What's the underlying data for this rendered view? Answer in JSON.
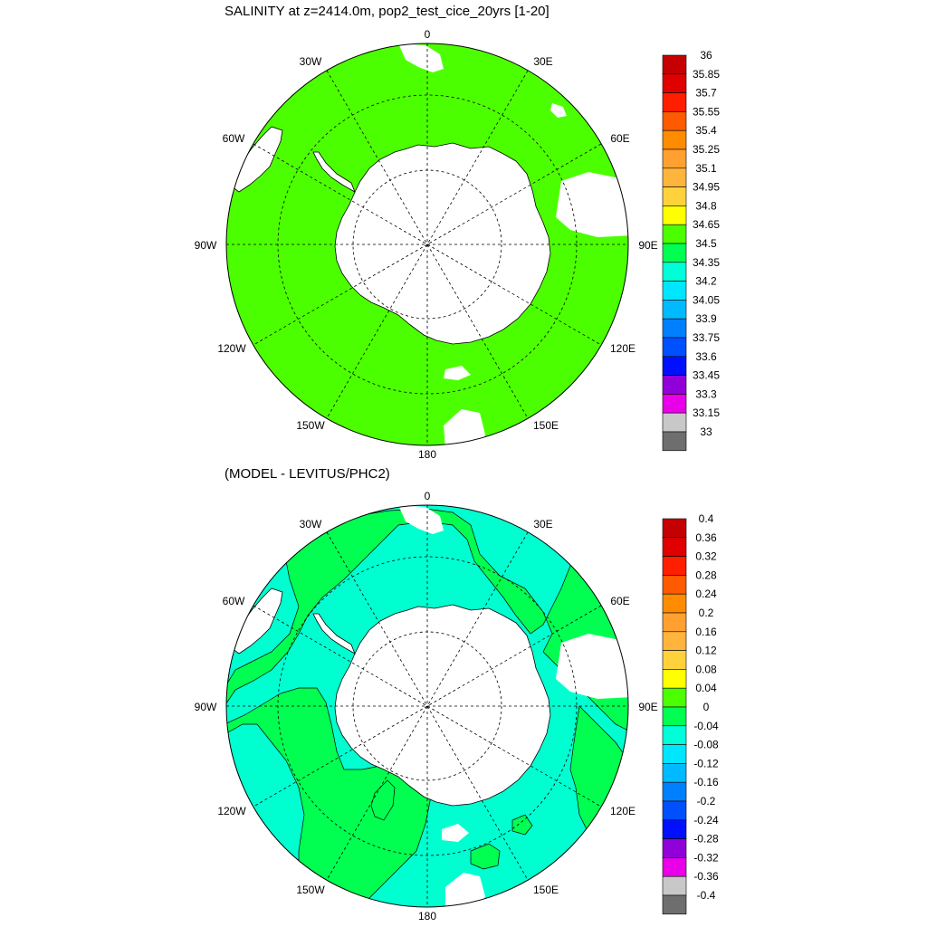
{
  "panels": [
    {
      "title": "SALINITY at z=2414.0m, pop2_test_cice_20yrs [1-20]",
      "fill_color": "#4cff00",
      "colorbar": {
        "labels": [
          "36",
          "35.85",
          "35.7",
          "35.55",
          "35.4",
          "35.25",
          "35.1",
          "34.95",
          "34.8",
          "34.65",
          "34.5",
          "34.35",
          "34.2",
          "34.05",
          "33.9",
          "33.75",
          "33.6",
          "33.45",
          "33.3",
          "33.15",
          "33"
        ],
        "colors": [
          "#c40000",
          "#e00000",
          "#ff1e00",
          "#ff5a00",
          "#ff8c00",
          "#ffa030",
          "#ffb43c",
          "#ffd23c",
          "#ffff00",
          "#4cff00",
          "#00ff50",
          "#00ffd8",
          "#00e6ff",
          "#00baff",
          "#0080ff",
          "#0050ff",
          "#0010ff",
          "#9000d8",
          "#e800e8",
          "#c8c8c8",
          "#6e6e6e"
        ]
      }
    },
    {
      "title": "(MODEL - LEVITUS/PHC2)",
      "fill_color": "#00ffd0",
      "colorbar": {
        "labels": [
          "0.4",
          "0.36",
          "0.32",
          "0.28",
          "0.24",
          "0.2",
          "0.16",
          "0.12",
          "0.08",
          "0.04",
          "0",
          "-0.04",
          "-0.08",
          "-0.12",
          "-0.16",
          "-0.2",
          "-0.24",
          "-0.28",
          "-0.32",
          "-0.36",
          "-0.4"
        ],
        "colors": [
          "#c40000",
          "#e00000",
          "#ff1e00",
          "#ff5a00",
          "#ff8c00",
          "#ffa030",
          "#ffb43c",
          "#ffd23c",
          "#ffff00",
          "#4cff00",
          "#00ff50",
          "#00ffd8",
          "#00e6ff",
          "#00baff",
          "#0080ff",
          "#0050ff",
          "#0010ff",
          "#9000d8",
          "#e800e8",
          "#c8c8c8",
          "#6e6e6e"
        ]
      }
    }
  ],
  "lon_labels": [
    "0",
    "30E",
    "60E",
    "90E",
    "120E",
    "150E",
    "180",
    "150W",
    "120W",
    "90W",
    "60W",
    "30W"
  ]
}
